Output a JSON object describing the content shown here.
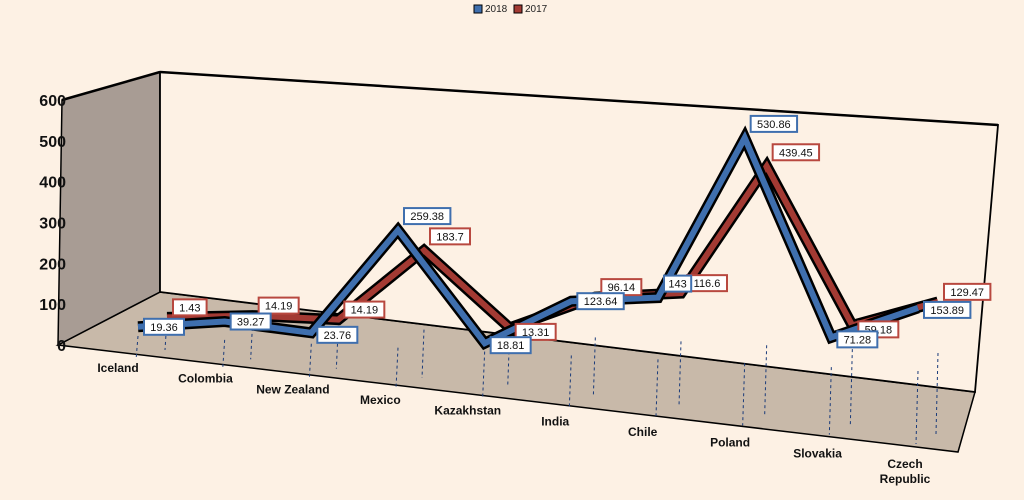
{
  "chart_data": {
    "type": "line",
    "categories": [
      "Iceland",
      "Colombia",
      "New Zealand",
      "Mexico",
      "Kazakhstan",
      "India",
      "Chile",
      "Poland",
      "Slovakia",
      "Czech Republic"
    ],
    "series": [
      {
        "name": "2018",
        "color": "#3f6fae",
        "values": [
          19.36,
          39.27,
          23.76,
          259.38,
          18.81,
          123.64,
          143,
          530.86,
          71.28,
          153.89
        ]
      },
      {
        "name": "2017",
        "color": "#a33a33",
        "values": [
          1.43,
          14.19,
          14.19,
          183.7,
          13.31,
          96.14,
          116.6,
          439.45,
          59.18,
          129.47
        ]
      }
    ],
    "ylim": [
      0,
      600
    ],
    "yticks": [
      "0",
      "100",
      "200",
      "300",
      "400",
      "500",
      "600"
    ],
    "legend_position": "top-center",
    "grid": false,
    "view": "3d-line",
    "colors": {
      "back_wall": "#fdf1e4",
      "side_wall": "#a89c94",
      "floor": "#c8b9a9",
      "outline": "#000000"
    }
  }
}
